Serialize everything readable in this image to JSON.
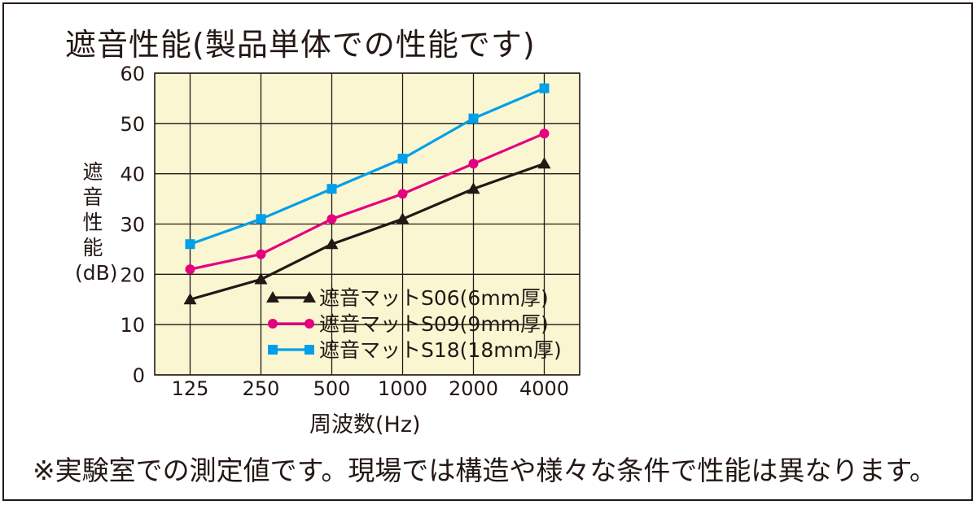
{
  "title": "遮音性能(製品単体での性能です)",
  "ylabel_chars": [
    "遮",
    "音",
    "性",
    "能",
    "(dB)"
  ],
  "xlabel": "周波数(Hz)",
  "note": "※実験室での測定値です。現場では構造や様々な条件で性能は異なります。",
  "colors": {
    "plot_bg": "#fbf6d2",
    "grid": "#231815",
    "axis_text": "#231815"
  },
  "chart_data": {
    "type": "line",
    "title": "遮音性能(製品単体での性能です)",
    "xlabel": "周波数(Hz)",
    "ylabel": "遮音性能(dB)",
    "categories": [
      "125",
      "250",
      "500",
      "1000",
      "2000",
      "4000"
    ],
    "y_ticks": [
      "0",
      "10",
      "20",
      "30",
      "40",
      "50",
      "60"
    ],
    "ylim": [
      0,
      60
    ],
    "grid": true,
    "legend_position": "bottom-right",
    "series": [
      {
        "name": "遮音マットS06(6mm厚)",
        "marker": "triangle",
        "color": "#231815",
        "values": [
          15,
          19,
          26,
          31,
          37,
          42
        ]
      },
      {
        "name": "遮音マットS09(9mm厚)",
        "marker": "circle",
        "color": "#e4007f",
        "values": [
          21,
          24,
          31,
          36,
          42,
          48
        ]
      },
      {
        "name": "遮音マットS18(18mm厚)",
        "marker": "square",
        "color": "#00a0e9",
        "values": [
          26,
          31,
          37,
          43,
          51,
          57
        ]
      }
    ]
  }
}
